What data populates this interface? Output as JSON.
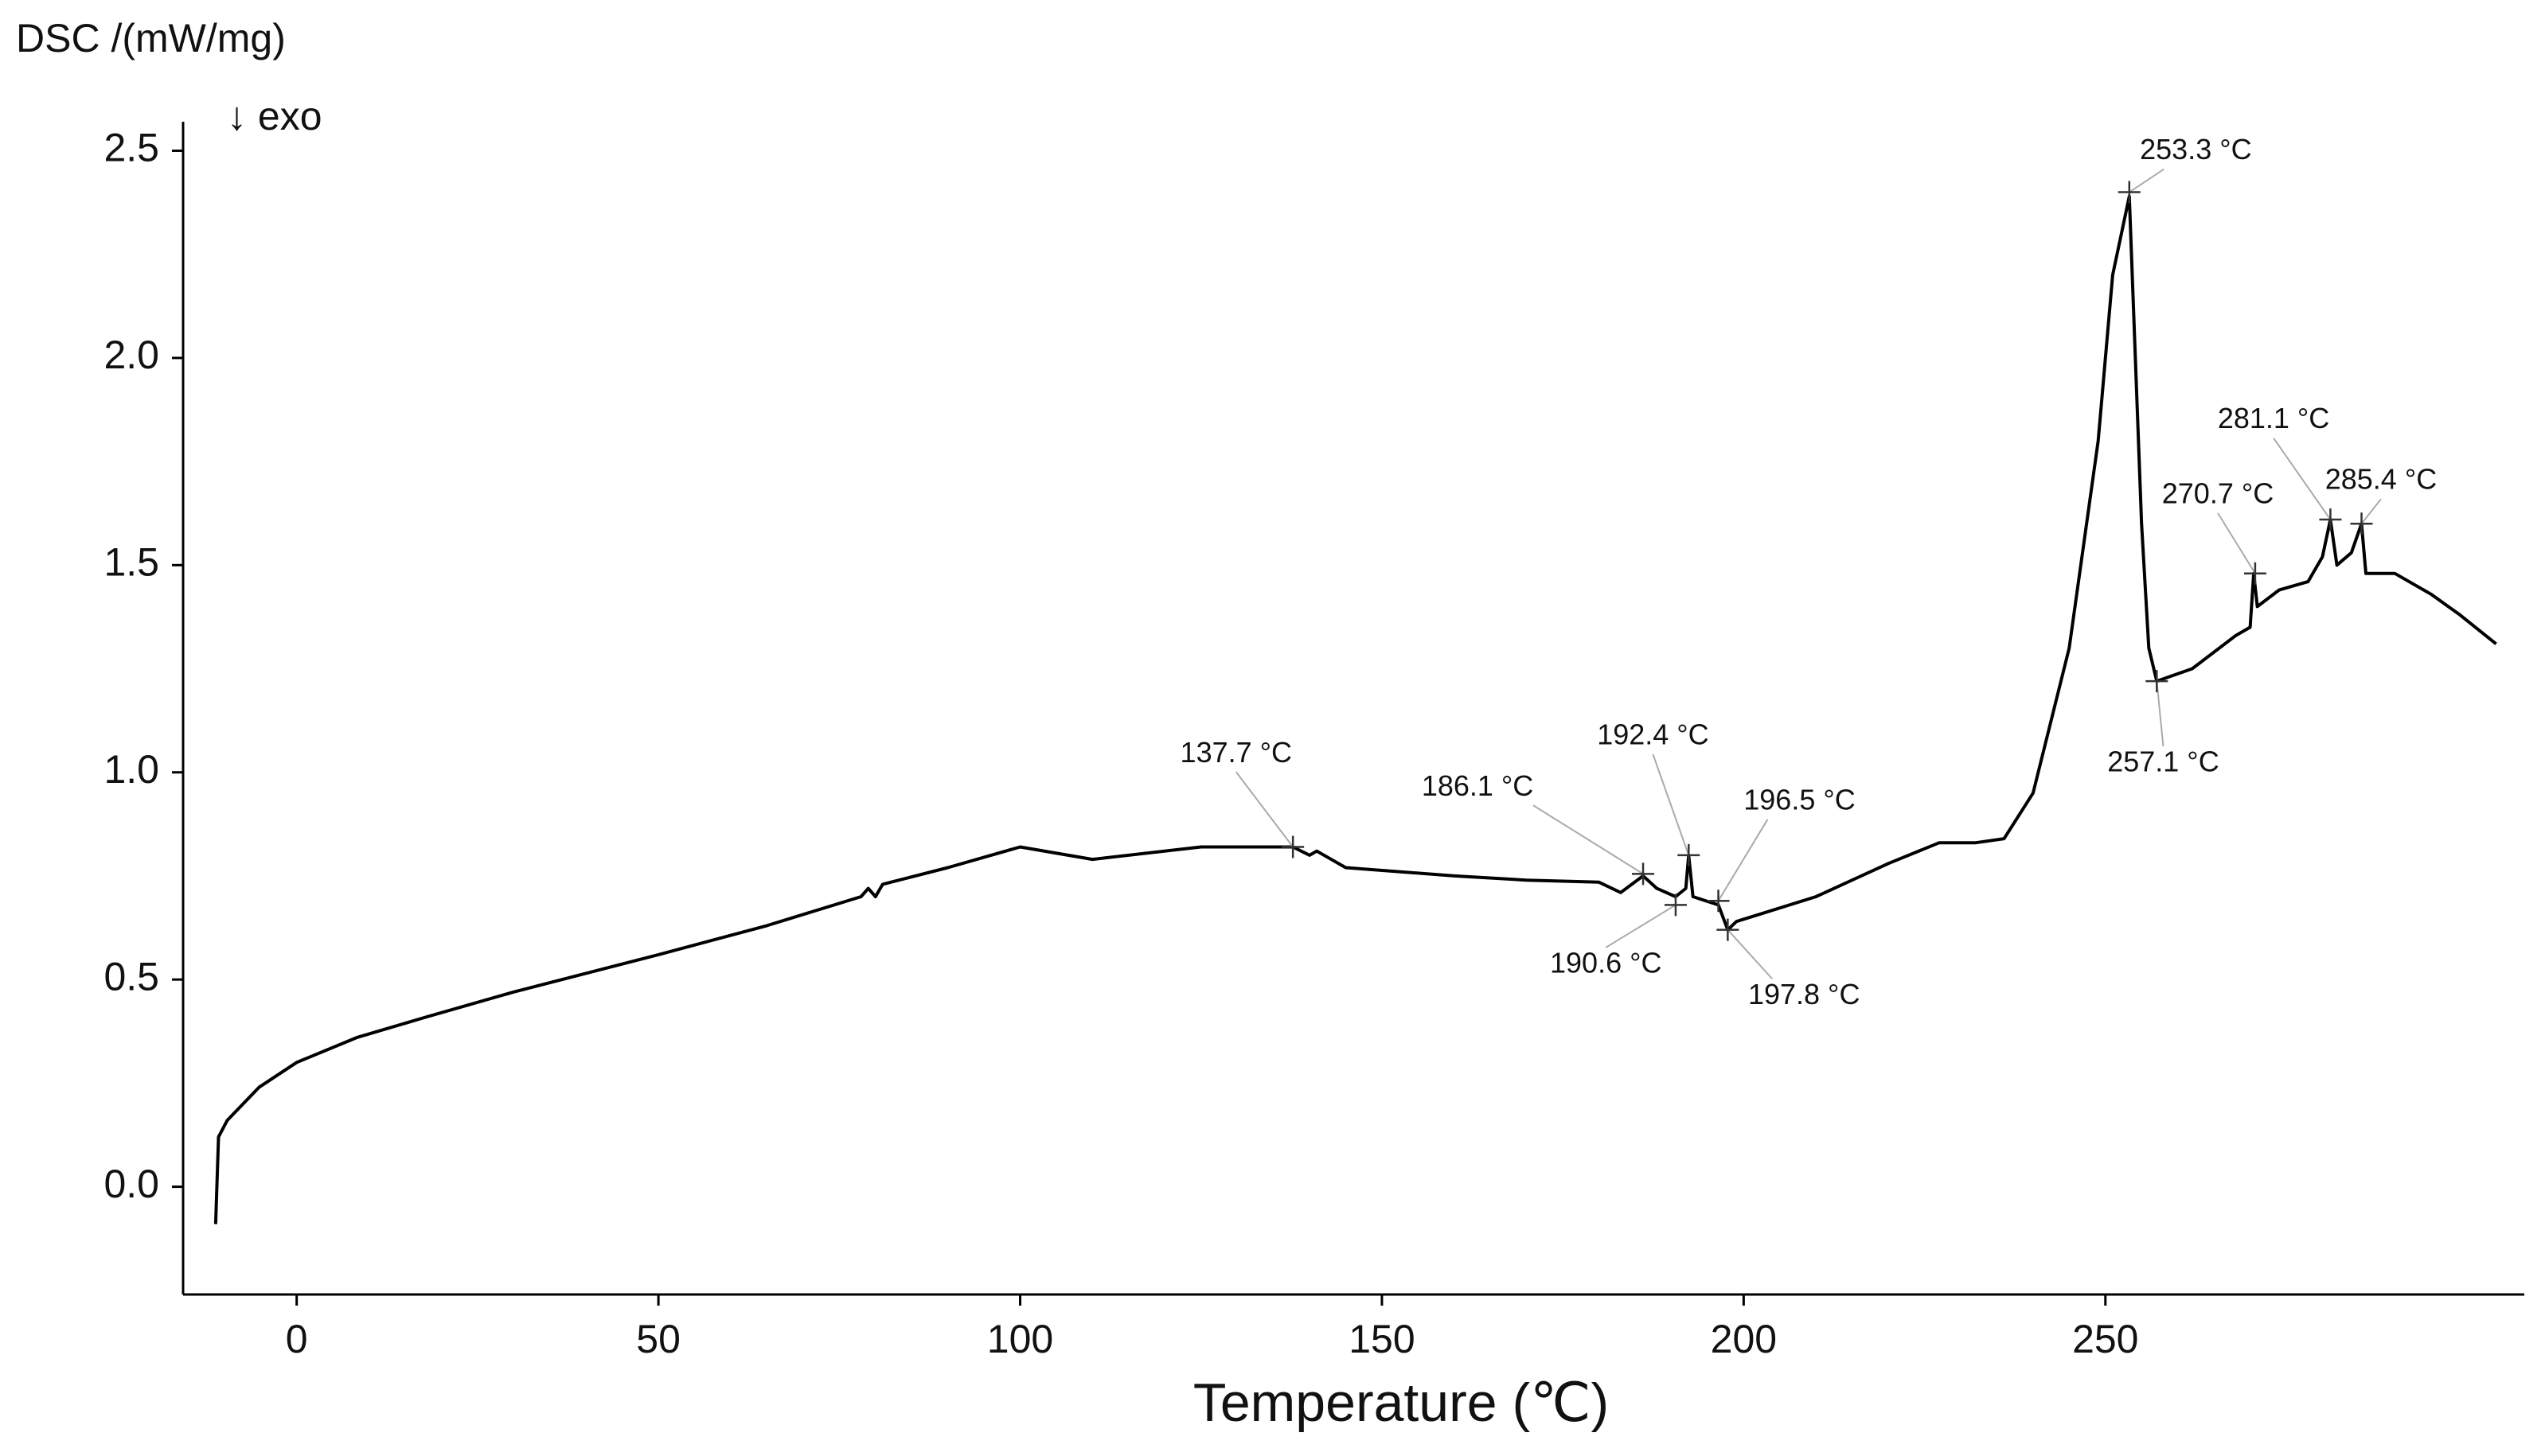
{
  "chart_data": {
    "type": "line",
    "y_label": "DSC /(mW/mg)",
    "direction_note": "↓ exo",
    "x_label": "Temperature (℃)",
    "xlim": [
      -15.7,
      307.9
    ],
    "ylim": [
      -0.26,
      2.57
    ],
    "xticks": [
      0,
      50,
      100,
      150,
      200,
      250
    ],
    "yticks": [
      {
        "value": 0,
        "label": "0.0"
      },
      0.5,
      {
        "value": 1,
        "label": "1.0"
      },
      1.5,
      {
        "value": 2,
        "label": "2.0"
      },
      2.5
    ],
    "x": [
      -11.2,
      -10.8,
      -9.6,
      -5.2,
      0,
      8.3,
      18,
      30,
      50,
      65,
      78,
      79,
      80,
      81,
      90,
      100,
      110,
      125,
      137.7,
      140,
      141,
      145,
      160,
      170,
      180,
      183,
      186.1,
      188,
      190.6,
      192,
      192.4,
      193,
      196.5,
      197.8,
      199,
      210,
      220,
      227,
      232,
      236,
      240,
      245,
      249,
      251,
      253.3,
      255,
      256,
      257.1,
      262,
      268,
      270,
      270.5,
      271,
      274,
      278,
      280,
      281.1,
      282,
      284,
      285.4,
      286,
      290,
      295,
      299,
      304
    ],
    "series": [
      {
        "name": "DSC",
        "color": "#000000",
        "values": [
          -0.09,
          0.12,
          0.16,
          0.24,
          0.3,
          0.36,
          0.41,
          0.47,
          0.56,
          0.63,
          0.7,
          0.72,
          0.7,
          0.73,
          0.77,
          0.82,
          0.79,
          0.82,
          0.82,
          0.8,
          0.81,
          0.77,
          0.75,
          0.74,
          0.735,
          0.71,
          0.75,
          0.72,
          0.7,
          0.72,
          0.8,
          0.7,
          0.68,
          0.62,
          0.64,
          0.7,
          0.78,
          0.83,
          0.83,
          0.84,
          0.95,
          1.3,
          1.8,
          2.2,
          2.39,
          1.6,
          1.3,
          1.22,
          1.25,
          1.33,
          1.35,
          1.48,
          1.4,
          1.44,
          1.46,
          1.52,
          1.61,
          1.5,
          1.53,
          1.6,
          1.48,
          1.48,
          1.43,
          1.38,
          1.31
        ]
      }
    ],
    "annotations": [
      {
        "label": "137.7 °C",
        "x": 137.7,
        "y": 0.82
      },
      {
        "label": "186.1 °C",
        "x": 186.1,
        "y": 0.755
      },
      {
        "label": "190.6 °C",
        "x": 190.6,
        "y": 0.68
      },
      {
        "label": "192.4 °C",
        "x": 192.4,
        "y": 0.8
      },
      {
        "label": "196.5 °C",
        "x": 196.5,
        "y": 0.69
      },
      {
        "label": "197.8 °C",
        "x": 197.8,
        "y": 0.62
      },
      {
        "label": "253.3 °C",
        "x": 253.3,
        "y": 2.4
      },
      {
        "label": "257.1 °C",
        "x": 257.1,
        "y": 1.22
      },
      {
        "label": "270.7 °C",
        "x": 270.7,
        "y": 1.48
      },
      {
        "label": "281.1 °C",
        "x": 281.1,
        "y": 1.61
      },
      {
        "label": "285.4 °C",
        "x": 285.4,
        "y": 1.6
      }
    ]
  }
}
